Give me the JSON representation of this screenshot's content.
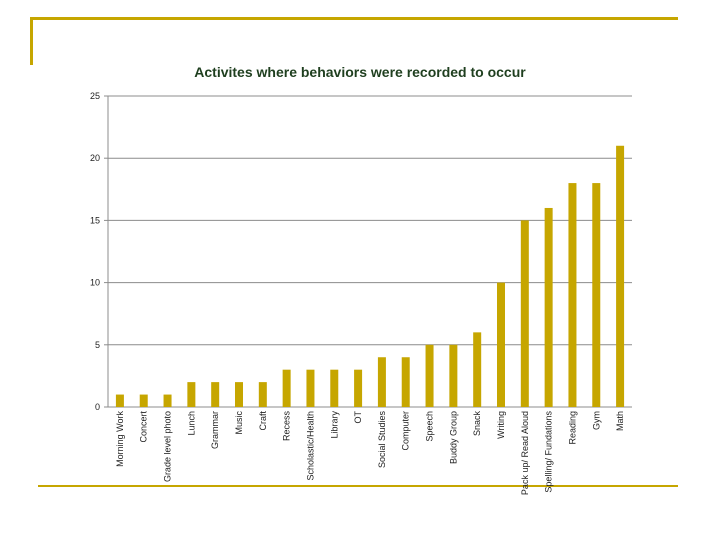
{
  "chart_data": {
    "type": "bar",
    "title": "Activites where behaviors were recorded to occur",
    "xlabel": "",
    "ylabel": "",
    "ylim": [
      0,
      25
    ],
    "yticks": [
      0,
      5,
      10,
      15,
      20,
      25
    ],
    "grid": true,
    "bar_color": "#c6a600",
    "categories": [
      "Morning Work",
      "Concert",
      "Grade level photo",
      "Lunch",
      "Grammar",
      "Music",
      "Craft",
      "Recess",
      "Scholastic/Health",
      "Library",
      "OT",
      "Social Studies",
      "Computer",
      "Speech",
      "Buddy Group",
      "Snack",
      "Writing",
      "Pack up/ Read Aloud",
      "Spelling/ Fundations",
      "Reading",
      "Gym",
      "Math"
    ],
    "values": [
      1,
      1,
      1,
      2,
      2,
      2,
      2,
      3,
      3,
      3,
      3,
      4,
      4,
      5,
      5,
      6,
      10,
      15,
      16,
      18,
      18,
      21
    ]
  },
  "colors": {
    "accent": "#c6a600",
    "title": "#1f3f1f",
    "grid": "#8c8c8c"
  }
}
